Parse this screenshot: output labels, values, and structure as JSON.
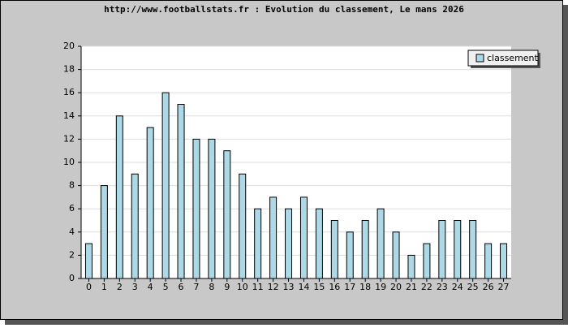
{
  "chart_data": {
    "type": "bar",
    "title": "http://www.footballstats.fr : Evolution du classement, Le mans 2026",
    "categories": [
      "0",
      "1",
      "2",
      "3",
      "4",
      "5",
      "6",
      "7",
      "8",
      "9",
      "10",
      "11",
      "12",
      "13",
      "14",
      "15",
      "16",
      "17",
      "18",
      "19",
      "20",
      "21",
      "22",
      "23",
      "24",
      "25",
      "26",
      "27"
    ],
    "series": [
      {
        "name": "classement",
        "color": "#add8e6",
        "values": [
          3,
          8,
          14,
          9,
          13,
          16,
          15,
          12,
          12,
          11,
          9,
          6,
          7,
          6,
          7,
          6,
          5,
          4,
          5,
          6,
          4,
          2,
          3,
          5,
          5,
          5,
          3,
          3
        ]
      }
    ],
    "ylim": [
      0,
      20
    ],
    "yticks": [
      0,
      2,
      4,
      6,
      8,
      10,
      12,
      14,
      16,
      18,
      20
    ],
    "grid": true,
    "legend": "top-right"
  }
}
